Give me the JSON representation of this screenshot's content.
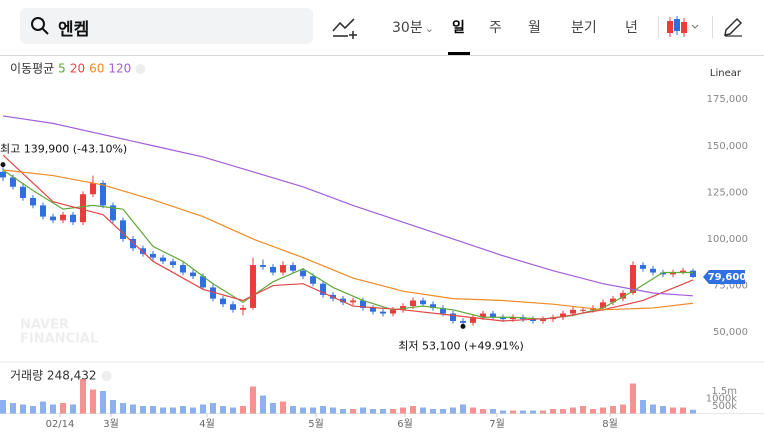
{
  "header": {
    "search_text": "엔켐",
    "intervals": [
      "30분",
      "일",
      "주",
      "월",
      "분기",
      "년"
    ],
    "selected_interval": "일"
  },
  "chart_data": {
    "type": "candlestick",
    "legend_title": "이동평균",
    "scale_label": "Linear",
    "x": [
      0,
      1,
      2,
      3,
      4,
      5,
      6,
      7,
      8,
      9,
      10,
      11,
      12,
      13,
      14,
      15,
      16,
      17,
      18,
      19,
      20,
      21,
      22,
      23,
      24,
      25,
      26,
      27,
      28,
      29,
      30,
      31,
      32,
      33,
      34,
      35,
      36,
      37,
      38,
      39,
      40,
      41,
      42,
      43,
      44,
      45,
      46,
      47,
      48,
      49,
      50,
      51,
      52,
      53,
      54,
      55,
      56,
      57,
      58,
      59,
      60,
      61,
      62,
      63,
      64,
      65,
      66,
      67,
      68,
      69
    ],
    "xlim": [
      -0.3,
      69.7
    ],
    "xticks": [
      {
        "value": 5.7,
        "label": "02/14"
      },
      {
        "value": 10.8,
        "label": "3월"
      },
      {
        "value": 20.4,
        "label": "4월"
      },
      {
        "value": 31.3,
        "label": "5월"
      },
      {
        "value": 40.2,
        "label": "6월"
      },
      {
        "value": 49.4,
        "label": "7월"
      },
      {
        "value": 60.7,
        "label": "8월"
      }
    ],
    "open": [
      136000,
      133000,
      128000,
      122000,
      118000,
      112000,
      110000,
      113000,
      109000,
      124000,
      130000,
      118000,
      110000,
      100000,
      95000,
      92000,
      90000,
      88000,
      86000,
      82000,
      80000,
      74000,
      68000,
      65000,
      62000,
      63000,
      86000,
      85000,
      82000,
      86000,
      83000,
      80000,
      76000,
      70000,
      68000,
      66000,
      67000,
      63000,
      61000,
      60000,
      62000,
      64000,
      67000,
      65000,
      63000,
      60000,
      56000,
      55000,
      58000,
      60000,
      58000,
      57000,
      58000,
      57000,
      56000,
      57000,
      58000,
      60000,
      62000,
      62000,
      63000,
      66000,
      68000,
      71000,
      86000,
      84000,
      82000,
      81000,
      82000,
      83000
    ],
    "high": [
      139900,
      134500,
      129500,
      123500,
      119500,
      113500,
      114500,
      114500,
      125500,
      134000,
      131500,
      119500,
      111500,
      101500,
      96500,
      93500,
      91500,
      89500,
      87500,
      83500,
      81500,
      75500,
      69500,
      66500,
      64500,
      90000,
      89000,
      86500,
      88000,
      87500,
      84500,
      81500,
      77500,
      71500,
      69500,
      68500,
      68500,
      64500,
      62500,
      63500,
      65500,
      68500,
      68500,
      66500,
      64500,
      61500,
      57500,
      59500,
      61500,
      61500,
      59500,
      59500,
      59500,
      58500,
      58500,
      59500,
      61500,
      63500,
      63500,
      64500,
      67500,
      69500,
      72500,
      88000,
      87500,
      85500,
      83500,
      83500,
      84500,
      84000
    ],
    "low": [
      131000,
      126500,
      120500,
      116500,
      110500,
      108500,
      108500,
      107500,
      107500,
      122500,
      116500,
      108500,
      98500,
      93500,
      90500,
      88500,
      86500,
      84500,
      80500,
      78500,
      72500,
      66500,
      63500,
      60500,
      59000,
      62000,
      83500,
      80500,
      80500,
      81500,
      78500,
      74500,
      68500,
      66500,
      64500,
      64500,
      61500,
      59500,
      58500,
      58500,
      60500,
      62500,
      63500,
      61500,
      58500,
      54500,
      53100,
      53500,
      56500,
      56500,
      55500,
      55500,
      55500,
      54500,
      54500,
      55500,
      56500,
      58500,
      60500,
      60500,
      61500,
      64500,
      66500,
      70000,
      82500,
      80500,
      79500,
      79500,
      81000,
      79000
    ],
    "close": [
      133000,
      128000,
      122000,
      118000,
      112000,
      110000,
      113000,
      109000,
      124000,
      130000,
      118000,
      110000,
      100000,
      95000,
      92000,
      90000,
      88000,
      86000,
      82000,
      80000,
      74000,
      68000,
      65000,
      62000,
      63000,
      86000,
      85000,
      82000,
      86000,
      83000,
      80000,
      76000,
      70000,
      68000,
      66000,
      67000,
      63000,
      61000,
      60000,
      62000,
      64000,
      67000,
      65000,
      63000,
      60000,
      56000,
      55000,
      58000,
      60000,
      58000,
      57000,
      58000,
      57000,
      56000,
      57000,
      58000,
      60000,
      62000,
      62000,
      63000,
      66000,
      68000,
      71000,
      86000,
      84000,
      82000,
      81000,
      82000,
      83000,
      79600
    ],
    "up_color": "#ec3b3b",
    "down_color": "#2f6fe0",
    "ylim": [
      34000,
      196000
    ],
    "yticks": [
      {
        "value": 50000,
        "label": "50,000"
      },
      {
        "value": 75000,
        "label": "75,000"
      },
      {
        "value": 100000,
        "label": "100,000"
      },
      {
        "value": 125000,
        "label": "125,000"
      },
      {
        "value": 150000,
        "label": "150,000"
      },
      {
        "value": 175000,
        "label": "175,000"
      }
    ],
    "moving_averages": [
      {
        "name": "5",
        "color": "#5fa83a",
        "x": [
          0,
          3,
          6,
          9,
          12,
          15,
          18,
          21,
          24,
          27,
          30,
          33,
          36,
          39,
          42,
          45,
          48,
          51,
          54,
          57,
          60,
          63,
          66,
          69
        ],
        "values": [
          137000,
          126000,
          116000,
          118000,
          116000,
          96000,
          88000,
          76000,
          66000,
          77000,
          84000,
          74000,
          67000,
          62000,
          64000,
          62000,
          58000,
          58000,
          57000,
          59000,
          63000,
          72000,
          82000,
          82000
        ]
      },
      {
        "name": "20",
        "color": "#e04848",
        "x": [
          0,
          5,
          10,
          15,
          20,
          24,
          27,
          30,
          35,
          40,
          45,
          50,
          55,
          60,
          64,
          69
        ],
        "values": [
          145000,
          120000,
          113000,
          88000,
          73000,
          67000,
          75000,
          76000,
          64000,
          62000,
          59000,
          56000,
          57500,
          62000,
          67000,
          78000
        ]
      },
      {
        "name": "60",
        "color": "#f08a24",
        "x": [
          0,
          5,
          10,
          15,
          20,
          25,
          30,
          35,
          40,
          45,
          50,
          55,
          60,
          65,
          69
        ],
        "values": [
          137000,
          134000,
          129000,
          121000,
          112000,
          100000,
          90000,
          79000,
          72000,
          68000,
          67000,
          65000,
          62000,
          63000,
          65500
        ]
      },
      {
        "name": "120",
        "color": "#a35ed8",
        "x": [
          0,
          5,
          10,
          15,
          20,
          25,
          30,
          35,
          40,
          45,
          50,
          55,
          60,
          65,
          69
        ],
        "values": [
          166000,
          162000,
          156000,
          150000,
          144000,
          136000,
          128000,
          118000,
          109000,
          100000,
          91000,
          83000,
          76000,
          71000,
          69500
        ]
      }
    ],
    "annotations": [
      {
        "text": "최고 139,900 (-43.10%)",
        "x": 0,
        "y": 139900
      },
      {
        "text": "최저 53,100 (+49.91%)",
        "x": 46,
        "y": 53100
      }
    ],
    "current_price": {
      "value": 79600,
      "label": "79,600"
    },
    "watermark": [
      "NAVER",
      "FINANCIAL"
    ],
    "volume": {
      "title": "거래량 248,432",
      "values": [
        900000,
        700000,
        600000,
        500000,
        800000,
        600000,
        700000,
        600000,
        2300000,
        1600000,
        1500000,
        900000,
        700000,
        600000,
        500000,
        500000,
        400000,
        400000,
        500000,
        400000,
        600000,
        700000,
        500000,
        400000,
        500000,
        1800000,
        1200000,
        700000,
        800000,
        500000,
        400000,
        400000,
        500000,
        400000,
        300000,
        300000,
        400000,
        300000,
        300000,
        300000,
        400000,
        500000,
        400000,
        300000,
        300000,
        400000,
        600000,
        400000,
        300000,
        300000,
        200000,
        200000,
        200000,
        200000,
        200000,
        300000,
        300000,
        400000,
        500000,
        300000,
        400000,
        500000,
        600000,
        2000000,
        900000,
        600000,
        500000,
        400000,
        400000,
        248432
      ],
      "ylim": [
        0,
        2900000
      ],
      "yticks": [
        {
          "value": 500000,
          "label": "500k"
        },
        {
          "value": 1000000,
          "label": "1000k"
        },
        {
          "value": 1500000,
          "label": "1.5m"
        }
      ]
    }
  }
}
